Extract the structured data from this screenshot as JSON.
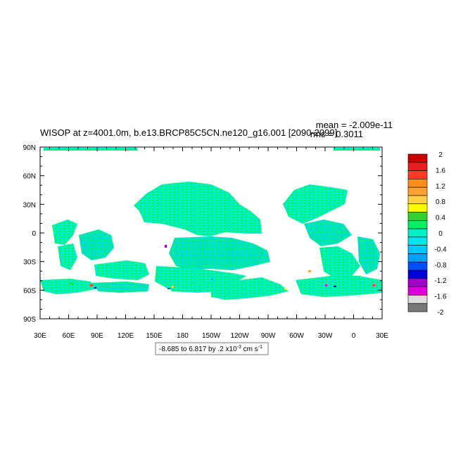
{
  "title": {
    "left": "WISOP at z=4001.0m, b.e13.BRCP85C5CN.ne120_g16.001 [2090-2099]",
    "mean": "mean = -2.009e-11",
    "rms": "rms = 0.3011"
  },
  "axes": {
    "lat_ticks": [
      {
        "label": "90N",
        "value": 90
      },
      {
        "label": "60N",
        "value": 60
      },
      {
        "label": "30N",
        "value": 30
      },
      {
        "label": "0",
        "value": 0
      },
      {
        "label": "30S",
        "value": -30
      },
      {
        "label": "60S",
        "value": -60
      },
      {
        "label": "90S",
        "value": -90
      }
    ],
    "lon_ticks": [
      {
        "label": "30E",
        "value": 30
      },
      {
        "label": "60E",
        "value": 60
      },
      {
        "label": "90E",
        "value": 90
      },
      {
        "label": "120E",
        "value": 120
      },
      {
        "label": "150E",
        "value": 150
      },
      {
        "label": "180",
        "value": 180
      },
      {
        "label": "150W",
        "value": 210
      },
      {
        "label": "120W",
        "value": 240
      },
      {
        "label": "90W",
        "value": 270
      },
      {
        "label": "60W",
        "value": 300
      },
      {
        "label": "30W",
        "value": 330
      },
      {
        "label": "0",
        "value": 360
      },
      {
        "label": "30E",
        "value": 390
      }
    ],
    "lon_range": [
      30,
      390
    ],
    "lat_range": [
      -90,
      90
    ]
  },
  "info_box": {
    "prefix": "-8.685 to 6.817 by .2 x10",
    "exponent": "-3",
    "unit": " cm s",
    "unit_exp": "-1"
  },
  "colorbar": {
    "labels": [
      "2",
      "1.6",
      "1.2",
      "0.8",
      "0.4",
      "0",
      "-0.4",
      "-0.8",
      "-1.2",
      "-1.6",
      "-2"
    ],
    "colors_top_to_bottom": [
      "#c80000",
      "#e61e1e",
      "#ff3c28",
      "#ff8c1e",
      "#ffa032",
      "#ffd046",
      "#ffff00",
      "#32d232",
      "#00f064",
      "#00f0c8",
      "#00e6f0",
      "#00c8ff",
      "#00a0ff",
      "#0050ff",
      "#0000dc",
      "#a000c8",
      "#dc00dc",
      "#dcdcdc",
      "#787878"
    ]
  },
  "map_data": {
    "field": "WISOP",
    "field_range": [
      -8.685,
      6.817
    ],
    "contour_interval": 0.2,
    "scale": "x10^-3",
    "dominant_colors": [
      "#00f0c8",
      "#00f064",
      "#00e6f0"
    ]
  }
}
